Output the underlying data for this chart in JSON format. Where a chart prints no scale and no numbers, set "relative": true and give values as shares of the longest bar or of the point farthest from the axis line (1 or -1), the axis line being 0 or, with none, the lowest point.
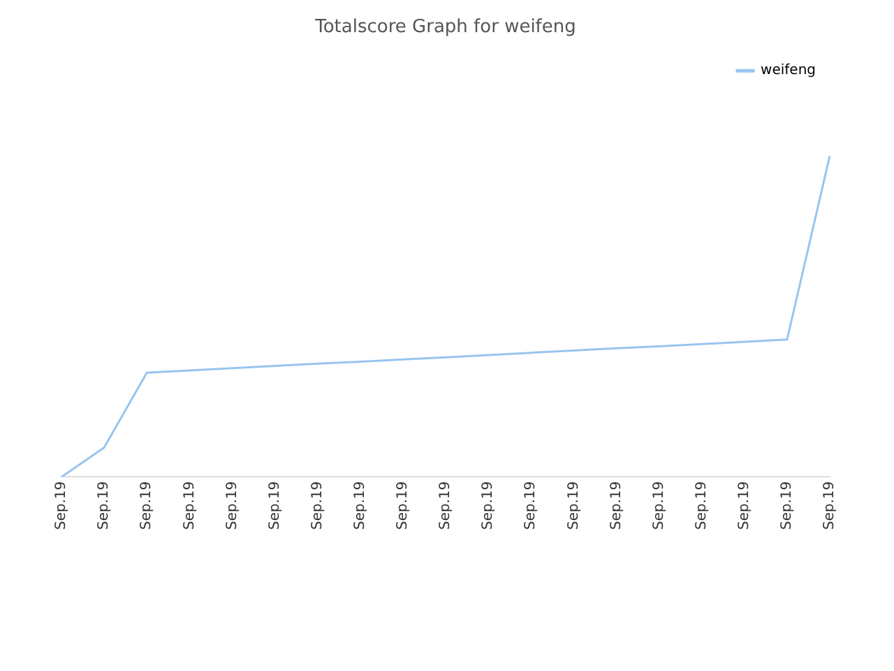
{
  "chart_data": {
    "type": "line",
    "title": "Totalscore Graph for weifeng",
    "relative": true,
    "categories": [
      "Sep.19",
      "Sep.19",
      "Sep.19",
      "Sep.19",
      "Sep.19",
      "Sep.19",
      "Sep.19",
      "Sep.19",
      "Sep.19",
      "Sep.19",
      "Sep.19",
      "Sep.19",
      "Sep.19",
      "Sep.19",
      "Sep.19",
      "Sep.19",
      "Sep.19",
      "Sep.19",
      "Sep.19"
    ],
    "series": [
      {
        "name": "weifeng",
        "color": "#99c5f0",
        "values": [
          0,
          0.092,
          0.325,
          0.332,
          0.339,
          0.346,
          0.353,
          0.359,
          0.366,
          0.373,
          0.38,
          0.387,
          0.394,
          0.401,
          0.407,
          0.414,
          0.421,
          0.428,
          1
        ]
      }
    ],
    "legend": "top right",
    "marker": "none",
    "line_style": "solid"
  }
}
